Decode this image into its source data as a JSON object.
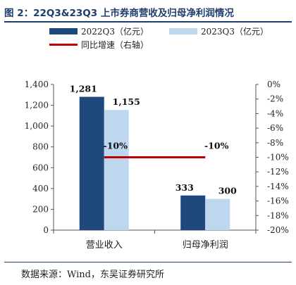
{
  "header": {
    "title": "图 2：22Q3&23Q3 上市券商营收及归母净利润情况"
  },
  "legend": {
    "items": [
      {
        "label": "2022Q3（亿元）",
        "color": "#1f497d"
      },
      {
        "label": "2023Q3（亿元）",
        "color": "#bdd7ee"
      },
      {
        "label": "同比增速（右轴）",
        "color": "#c00000"
      }
    ]
  },
  "footer": {
    "source": "数据来源：Wind，东吴证券研究所"
  },
  "chart_data": {
    "type": "bar",
    "categories": [
      "营业收入",
      "归母净利润"
    ],
    "series": [
      {
        "name": "2022Q3（亿元）",
        "values": [
          1281,
          333
        ],
        "color": "#1f497d",
        "labels": [
          "1,281",
          "333"
        ]
      },
      {
        "name": "2023Q3（亿元）",
        "values": [
          1155,
          300
        ],
        "color": "#bdd7ee",
        "labels": [
          "1,155",
          "300"
        ]
      }
    ],
    "line_series": {
      "name": "同比增速（右轴）",
      "values": [
        -10,
        -10
      ],
      "labels": [
        "-10%",
        "-10%"
      ],
      "color": "#c00000",
      "axis": "right"
    },
    "y_left": {
      "lim": [
        0,
        1400
      ],
      "ticks": [
        0,
        200,
        400,
        600,
        800,
        1000,
        1200,
        1400
      ],
      "tick_labels": [
        "0",
        "200",
        "400",
        "600",
        "800",
        "1,000",
        "1,200",
        "1,400"
      ]
    },
    "y_right": {
      "lim": [
        -20,
        0
      ],
      "ticks": [
        0,
        -2,
        -4,
        -6,
        -8,
        -10,
        -12,
        -14,
        -16,
        -18,
        -20
      ],
      "tick_labels": [
        "0%",
        "-2%",
        "-4%",
        "-6%",
        "-8%",
        "-10%",
        "-12%",
        "-14%",
        "-16%",
        "-18%",
        "-20%"
      ]
    },
    "grid": false,
    "legend_position": "top"
  }
}
